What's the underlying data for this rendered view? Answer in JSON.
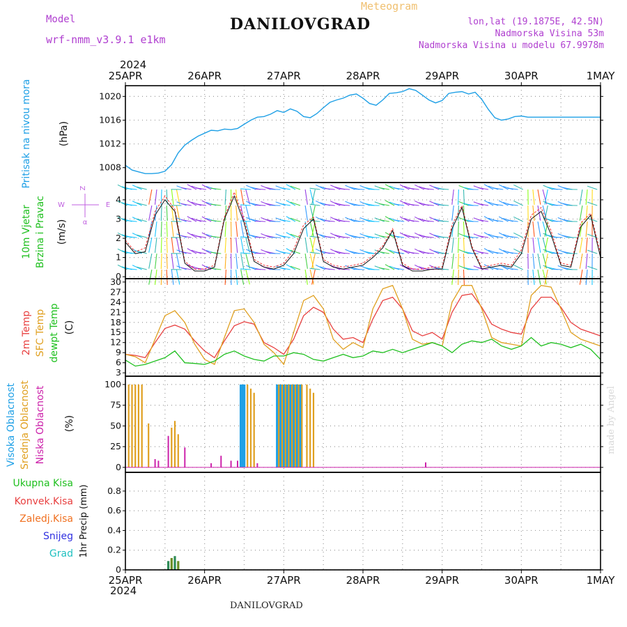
{
  "header": {
    "model_label": "Model",
    "model_name": "wrf-nmm_v3.9.1  e1km",
    "station": "DANILOVGRAD",
    "title": "Meteogram",
    "lonlat": "lon,lat (19.1875E, 42.5N)",
    "elevation": "Nadmorska Visina 53m",
    "model_elevation": "Nadmorska Visina u modelu 67.9978m",
    "year_top": "2024",
    "year_bottom": "2024",
    "footer_station": "DANILOVGRAD",
    "credit": "made by Angel"
  },
  "colors": {
    "pressure": "#1fa0e6",
    "temp2m": "#e84040",
    "sfc_temp": "#e0a020",
    "dewpt": "#20c020",
    "high_cloud": "#1fa0e6",
    "mid_cloud": "#e0a020",
    "low_cloud": "#cc22aa",
    "total_precip": "#20c020",
    "convective": "#e84040",
    "frozen": "#f07020",
    "snow": "#3030e0",
    "grad": "#20c0c0",
    "header_purple": "#b040d0",
    "meteogram_orange": "#f0c070",
    "wind_label_purple": "#c060e0"
  },
  "chart_data": [
    {
      "type": "line",
      "name": "pressure",
      "ylabel_name": "Pritisak na nivou mora",
      "ylabel_unit": "(hPa)",
      "x_ticks": [
        "25APR",
        "26APR",
        "27APR",
        "28APR",
        "29APR",
        "30APR",
        "1MAY"
      ],
      "xlim": [
        0,
        144
      ],
      "ylim": [
        1005.5,
        1021.8
      ],
      "y_ticks": [
        1008,
        1012,
        1016,
        1020
      ],
      "grid": true,
      "x": [
        0,
        2,
        4,
        6,
        8,
        10,
        12,
        14,
        16,
        18,
        20,
        22,
        24,
        26,
        28,
        30,
        32,
        34,
        36,
        38,
        40,
        42,
        44,
        46,
        48,
        50,
        52,
        54,
        56,
        58,
        60,
        62,
        64,
        66,
        68,
        70,
        72,
        74,
        76,
        78,
        80,
        82,
        84,
        86,
        88,
        90,
        92,
        94,
        96,
        98,
        100,
        102,
        104,
        106,
        108,
        110,
        112,
        114,
        116,
        118,
        120,
        122,
        124,
        126,
        128,
        130,
        132,
        134,
        136,
        138,
        140,
        142,
        144
      ],
      "values": [
        1008.4,
        1007.6,
        1007.3,
        1007.0,
        1007.0,
        1007.1,
        1007.4,
        1008.5,
        1010.5,
        1011.8,
        1012.6,
        1013.3,
        1013.8,
        1014.3,
        1014.2,
        1014.5,
        1014.4,
        1014.6,
        1015.3,
        1016.0,
        1016.5,
        1016.6,
        1017.0,
        1017.6,
        1017.3,
        1017.9,
        1017.5,
        1016.6,
        1016.4,
        1017.1,
        1018.1,
        1019.0,
        1019.4,
        1019.7,
        1020.2,
        1020.4,
        1019.7,
        1018.8,
        1018.5,
        1019.4,
        1020.5,
        1020.6,
        1020.8,
        1021.3,
        1021.0,
        1020.2,
        1019.4,
        1018.9,
        1019.3,
        1020.5,
        1020.7,
        1020.8,
        1020.4,
        1020.7,
        1019.5,
        1017.8,
        1016.4,
        1016.0,
        1016.2,
        1016.6,
        1016.7,
        1016.5,
        1016.5,
        1016.5,
        1016.5,
        1016.5,
        1016.5,
        1016.5,
        1016.5,
        1016.5,
        1016.5,
        1016.5,
        1016.5
      ]
    },
    {
      "type": "line",
      "name": "wind",
      "ylabel_name": "10m Vjetar",
      "ylabel_name2": "Brzina i Pravac",
      "ylabel_unit": "(m/s)",
      "compass": {
        "n": "Z",
        "w": "W",
        "e": "E",
        "s": "α"
      },
      "xlim": [
        0,
        144
      ],
      "ylim": [
        -0.1,
        4.9
      ],
      "y_ticks": [
        0,
        1,
        2,
        3,
        4
      ],
      "grid": true,
      "x": [
        0,
        3,
        6,
        9,
        12,
        15,
        18,
        21,
        24,
        27,
        30,
        33,
        36,
        39,
        42,
        45,
        48,
        51,
        54,
        57,
        60,
        63,
        66,
        69,
        72,
        75,
        78,
        81,
        84,
        87,
        90,
        93,
        96,
        99,
        102,
        105,
        108,
        111,
        114,
        117,
        120,
        123,
        126,
        129,
        132,
        135,
        138,
        141,
        144
      ],
      "series": [
        {
          "name": "speed",
          "values": [
            1.8,
            1.2,
            1.3,
            3.2,
            4.0,
            3.4,
            0.7,
            0.3,
            0.3,
            0.5,
            3.0,
            4.2,
            2.8,
            0.8,
            0.5,
            0.4,
            0.6,
            1.2,
            2.5,
            3.0,
            0.8,
            0.5,
            0.4,
            0.5,
            0.6,
            1.0,
            1.5,
            2.4,
            0.6,
            0.3,
            0.3,
            0.4,
            0.4,
            2.5,
            3.6,
            1.5,
            0.4,
            0.5,
            0.6,
            0.5,
            1.2,
            3.0,
            3.4,
            2.2,
            0.6,
            0.5,
            2.6,
            3.2,
            1.0
          ]
        },
        {
          "name": "gust",
          "values": [
            1.9,
            1.3,
            1.5,
            3.4,
            4.2,
            3.5,
            0.8,
            0.4,
            0.4,
            0.6,
            3.1,
            4.4,
            3.0,
            0.9,
            0.6,
            0.5,
            0.7,
            1.4,
            2.7,
            3.1,
            0.9,
            0.6,
            0.5,
            0.6,
            0.7,
            1.1,
            1.6,
            2.5,
            0.7,
            0.4,
            0.4,
            0.5,
            0.5,
            2.7,
            3.7,
            1.6,
            0.5,
            0.6,
            0.7,
            0.6,
            1.4,
            3.2,
            3.6,
            2.4,
            0.7,
            0.6,
            2.8,
            3.3,
            1.2
          ]
        }
      ]
    },
    {
      "type": "line",
      "name": "temperature",
      "ylabel_name": "2m Temp",
      "ylabel_name2": "SFC Temp",
      "ylabel_name3": "dewpt Temp",
      "ylabel_unit": "(C)",
      "xlim": [
        0,
        144
      ],
      "ylim": [
        2,
        31
      ],
      "y_ticks": [
        3,
        6,
        9,
        12,
        15,
        18,
        21,
        24,
        27,
        30
      ],
      "grid": true,
      "x": [
        0,
        3,
        6,
        9,
        12,
        15,
        18,
        21,
        24,
        27,
        30,
        33,
        36,
        39,
        42,
        45,
        48,
        51,
        54,
        57,
        60,
        63,
        66,
        69,
        72,
        75,
        78,
        81,
        84,
        87,
        90,
        93,
        96,
        99,
        102,
        105,
        108,
        111,
        114,
        117,
        120,
        123,
        126,
        129,
        132,
        135,
        138,
        141,
        144
      ],
      "series": [
        {
          "name": "2m Temp",
          "values": [
            8.5,
            8.2,
            7.5,
            12.0,
            16.2,
            17.2,
            16.0,
            12.5,
            9.5,
            7.5,
            12.5,
            17.0,
            18.2,
            17.5,
            12.0,
            10.5,
            8.5,
            13.0,
            20.0,
            22.5,
            21.0,
            16.0,
            13.0,
            13.5,
            12.0,
            19.0,
            24.5,
            25.5,
            22.0,
            15.5,
            14.0,
            15.0,
            13.0,
            21.0,
            26.0,
            26.5,
            22.5,
            17.5,
            16.0,
            15.0,
            14.5,
            22.0,
            25.5,
            25.5,
            22.5,
            18.0,
            16.0,
            15.0,
            14.0
          ]
        },
        {
          "name": "SFC Temp",
          "values": [
            8.5,
            7.8,
            6.0,
            13.0,
            20.0,
            21.5,
            18.0,
            11.5,
            7.0,
            5.5,
            13.5,
            21.5,
            22.0,
            18.0,
            11.5,
            9.0,
            5.5,
            15.0,
            24.5,
            26.0,
            22.0,
            13.0,
            10.0,
            12.0,
            10.5,
            22.0,
            28.0,
            29.0,
            22.0,
            13.0,
            11.5,
            12.0,
            11.0,
            24.0,
            29.0,
            29.0,
            22.0,
            13.5,
            12.0,
            11.5,
            11.0,
            26.0,
            29.0,
            28.5,
            22.0,
            15.0,
            13.0,
            12.0,
            11.0
          ]
        },
        {
          "name": "dewpt Temp",
          "values": [
            6.8,
            5.0,
            5.5,
            6.5,
            7.5,
            9.5,
            6.0,
            5.8,
            5.5,
            6.5,
            8.5,
            9.5,
            8.0,
            7.0,
            6.5,
            8.0,
            8.0,
            9.0,
            8.5,
            7.0,
            6.5,
            7.5,
            8.5,
            7.5,
            8.0,
            9.5,
            9.0,
            10.0,
            9.0,
            10.0,
            11.0,
            12.0,
            11.0,
            9.0,
            11.5,
            12.5,
            12.0,
            13.0,
            11.0,
            10.0,
            11.0,
            13.5,
            11.0,
            12.0,
            11.5,
            10.5,
            11.5,
            10.0,
            7.0
          ]
        }
      ]
    },
    {
      "type": "bar",
      "name": "cloud",
      "ylabel_name": "Visoka Oblacnost",
      "ylabel_name2": "Srednja Oblacnost",
      "ylabel_name3": "Niska Oblacnost",
      "ylabel_unit": "(%)",
      "xlim": [
        0,
        144
      ],
      "ylim": [
        -6,
        110
      ],
      "y_ticks": [
        0,
        25,
        50,
        75,
        100
      ],
      "grid": true,
      "series": [
        {
          "name": "Visoka Oblacnost",
          "x": [
            35,
            35.5,
            36,
            46,
            46.5,
            47,
            47.5,
            48,
            48.5,
            49,
            49.5,
            50,
            50.5,
            51,
            51.5,
            52,
            52.5,
            53
          ],
          "values": [
            100,
            100,
            100,
            100,
            100,
            100,
            100,
            100,
            100,
            100,
            100,
            100,
            100,
            100,
            100,
            100,
            100,
            100
          ]
        },
        {
          "name": "Srednja Oblacnost",
          "x": [
            1,
            2,
            3,
            4,
            5,
            7,
            14,
            15,
            16,
            37,
            38,
            39,
            46.5,
            47.5,
            48.5,
            49.5,
            50.5,
            51.5,
            52.5,
            53.5,
            55,
            56,
            57
          ],
          "values": [
            100,
            100,
            100,
            100,
            100,
            53,
            48,
            56,
            40,
            100,
            95,
            90,
            100,
            100,
            100,
            100,
            100,
            100,
            100,
            100,
            100,
            95,
            90
          ]
        },
        {
          "name": "Niska Oblacnost",
          "x": [
            9,
            10,
            13,
            18,
            26,
            29,
            32,
            34,
            40,
            91
          ],
          "values": [
            10,
            8,
            38,
            24,
            5,
            14,
            8,
            8,
            5,
            6
          ]
        }
      ]
    },
    {
      "type": "bar",
      "name": "precip",
      "ylabel_name": "1hr Precip (mm)",
      "xlim": [
        0,
        144
      ],
      "ylim": [
        0,
        0.99
      ],
      "y_ticks": [
        0,
        0.2,
        0.4,
        0.6,
        0.8
      ],
      "x_ticks": [
        "25APR",
        "26APR",
        "27APR",
        "28APR",
        "29APR",
        "30APR",
        "1MAY"
      ],
      "grid": true,
      "legend": [
        "Ukupna Kisa",
        "Konvek.Kisa",
        "Zaledj.Kisa",
        "Snijeg",
        "Grad"
      ],
      "series": [
        {
          "name": "Ukupna Kisa",
          "x": [
            13,
            14,
            15,
            16
          ],
          "values": [
            0.09,
            0.12,
            0.14,
            0.09
          ]
        }
      ]
    }
  ]
}
